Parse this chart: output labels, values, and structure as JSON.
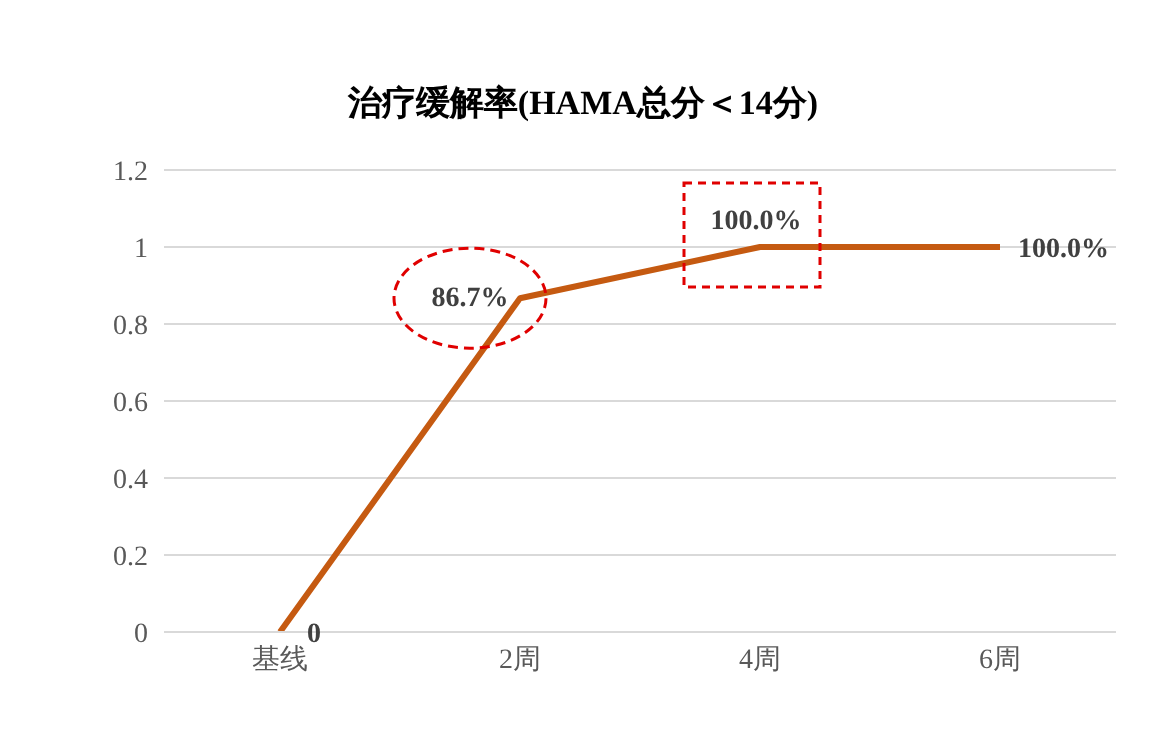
{
  "chart_data": {
    "type": "line",
    "title": "治疗缓解率(HAMA总分＜14分)",
    "categories": [
      "基线",
      "2周",
      "4周",
      "6周"
    ],
    "series": [
      {
        "color": "#c55a11",
        "values": [
          0,
          0.867,
          1,
          1
        ],
        "value_labels": [
          "0",
          "86.7%",
          "100.0%",
          "100.0%"
        ]
      }
    ],
    "ylim": [
      0,
      1.2
    ],
    "yticks": [
      0,
      0.2,
      0.4,
      0.6,
      0.8,
      1,
      1.2
    ],
    "grid": "y",
    "marker": "none",
    "line_style": "solid"
  }
}
